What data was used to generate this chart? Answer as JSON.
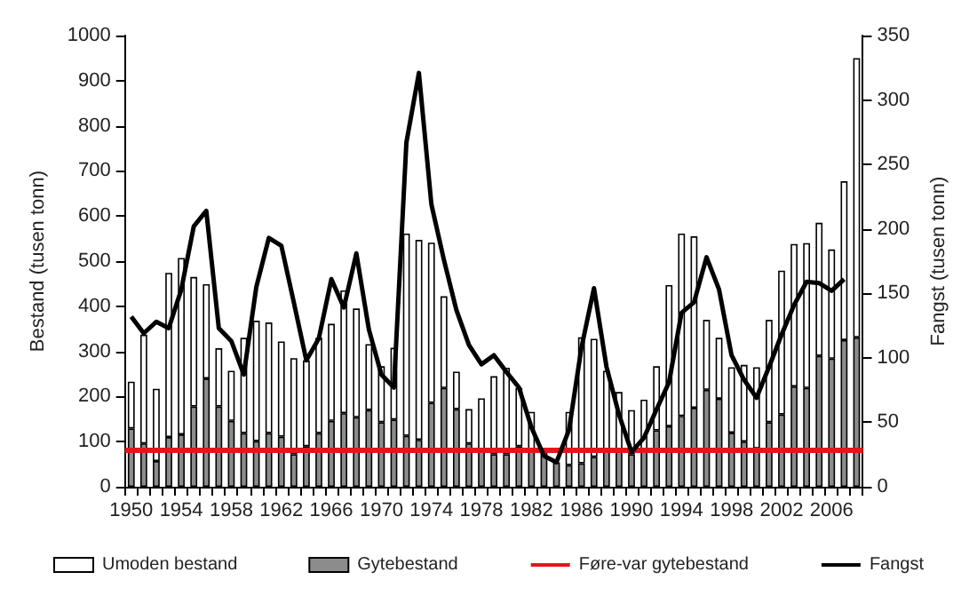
{
  "chart_data": {
    "type": "bar",
    "stacked": true,
    "ylabel": "Bestand (tusen tonn)",
    "y2label": "Fangst (tusen tonn)",
    "categories": [
      "1950",
      null,
      null,
      null,
      "1954",
      null,
      null,
      null,
      "1958",
      null,
      null,
      null,
      "1962",
      null,
      null,
      null,
      "1966",
      null,
      null,
      null,
      "1970",
      null,
      null,
      null,
      "1974",
      null,
      null,
      null,
      "1978",
      null,
      null,
      null,
      "1982",
      null,
      null,
      null,
      "1986",
      null,
      null,
      null,
      "1990",
      null,
      null,
      null,
      "1994",
      null,
      null,
      null,
      "1998",
      null,
      null,
      null,
      "2002",
      null,
      null,
      null,
      "2006",
      null,
      null
    ],
    "series": [
      {
        "name": "Gytebestand",
        "color": "#8c8c8c",
        "values": [
          129,
          96,
          57,
          110,
          116,
          178,
          240,
          178,
          146,
          119,
          101,
          119,
          111,
          72,
          90,
          119,
          146,
          163,
          154,
          170,
          143,
          149,
          113,
          104,
          186,
          219,
          172,
          96,
          78,
          72,
          72,
          90,
          78,
          80,
          54,
          48,
          52,
          66,
          78,
          78,
          72,
          78,
          125,
          134,
          157,
          175,
          215,
          195,
          120,
          100,
          85,
          143,
          160,
          222,
          219,
          290,
          284,
          325,
          331
        ]
      },
      {
        "name": "Umoden bestand",
        "color": "#ffffff",
        "values": [
          104,
          241,
          160,
          364,
          391,
          287,
          209,
          129,
          111,
          211,
          267,
          245,
          211,
          213,
          190,
          211,
          215,
          272,
          241,
          146,
          124,
          159,
          448,
          443,
          355,
          203,
          83,
          76,
          118,
          173,
          192,
          129,
          88,
          null,
          null,
          118,
          279,
          262,
          179,
          132,
          98,
          115,
          142,
          313,
          404,
          380,
          155,
          135,
          145,
          170,
          180,
          227,
          319,
          316,
          321,
          295,
          242,
          352,
          619
        ]
      },
      {
        "name": "Fangst",
        "type": "line",
        "axis": "y2",
        "color": "#000000",
        "values": [
          132,
          119,
          128,
          123,
          153,
          202,
          214,
          123,
          113,
          87,
          155,
          193,
          187,
          143,
          98,
          115,
          161,
          139,
          181,
          122,
          87,
          77,
          267,
          321,
          219,
          176,
          137,
          110,
          95,
          102,
          89,
          77,
          46,
          24,
          19,
          44,
          108,
          154,
          93,
          56,
          27,
          38,
          60,
          81,
          135,
          143,
          178,
          153,
          102,
          83,
          69,
          93,
          118,
          141,
          159,
          158,
          152,
          161,
          null
        ]
      }
    ],
    "ref_lines": [
      {
        "axis": "y",
        "value": 80,
        "label": "Føre-var gytebestand",
        "color": "#e8141c"
      }
    ],
    "ylim": [
      0,
      1000
    ],
    "yticks": [
      0,
      100,
      200,
      300,
      400,
      500,
      600,
      700,
      800,
      900,
      1000
    ],
    "y2lim": [
      0,
      350
    ],
    "y2ticks": [
      0,
      50,
      100,
      150,
      200,
      250,
      300,
      350
    ],
    "grid": false,
    "legend": "bottom",
    "marker": "none",
    "line_style": "solid"
  }
}
